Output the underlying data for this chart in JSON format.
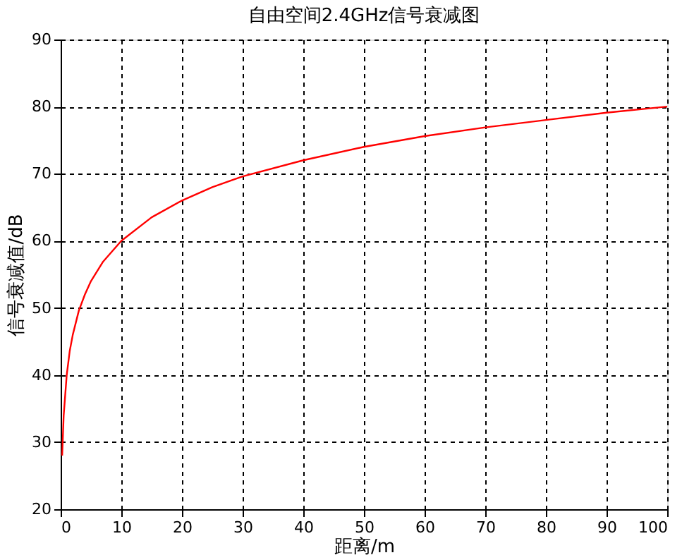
{
  "chart_data": {
    "type": "line",
    "title": "自由空间2.4GHz信号衰减图",
    "xlabel": "距离/m",
    "ylabel": "信号衰减值/dB",
    "x": [
      0.25,
      0.5,
      1,
      1.5,
      2,
      3,
      4,
      5,
      7,
      10,
      15,
      20,
      25,
      30,
      40,
      50,
      60,
      70,
      80,
      90,
      100
    ],
    "series": [
      {
        "color": "#ff0000",
        "values": [
          28,
          34,
          40,
          43.6,
          46,
          49.6,
          52,
          54,
          56.9,
          60,
          63.5,
          66,
          68,
          69.6,
          72,
          74,
          75.6,
          76.9,
          78,
          79.1,
          80
        ]
      }
    ],
    "xlim": [
      0,
      100
    ],
    "xticks": [
      0,
      10,
      20,
      30,
      40,
      50,
      60,
      70,
      80,
      90,
      100
    ],
    "ylim": [
      20,
      90
    ],
    "yticks": [
      20,
      30,
      40,
      50,
      60,
      70,
      80,
      90
    ],
    "grid": true,
    "marker": "none",
    "line_style": "solid"
  }
}
